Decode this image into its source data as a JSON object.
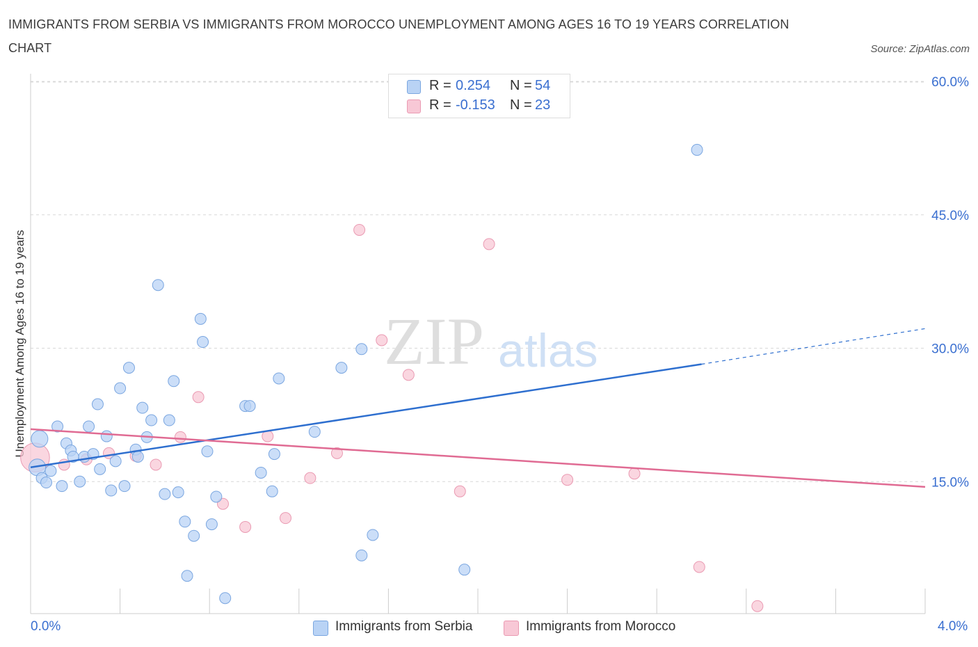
{
  "title": "IMMIGRANTS FROM SERBIA VS IMMIGRANTS FROM MOROCCO UNEMPLOYMENT AMONG AGES 16 TO 19 YEARS CORRELATION CHART",
  "source": "Source: ZipAtlas.com",
  "watermark": {
    "zip": "ZIP",
    "atlas": "atlas"
  },
  "legend": {
    "serbia": {
      "r_label": "R =",
      "r_value": "0.254",
      "n_label": "N =",
      "n_value": "54"
    },
    "morocco": {
      "r_label": "R =",
      "r_value": "-0.153",
      "n_label": "N =",
      "n_value": "23"
    }
  },
  "bottom_legend": {
    "serbia": "Immigrants from Serbia",
    "morocco": "Immigrants from Morocco"
  },
  "colors": {
    "serbia_fill": "#b9d3f5",
    "serbia_stroke": "#7aa6e0",
    "serbia_line": "#2e6fcf",
    "morocco_fill": "#f8c8d6",
    "morocco_stroke": "#ea9ab2",
    "morocco_line": "#e06b93",
    "tick_label": "#3a6fd0",
    "grid": "#d8d8d8"
  },
  "chart_data": {
    "type": "scatter",
    "title": "IMMIGRANTS FROM SERBIA VS IMMIGRANTS FROM MOROCCO UNEMPLOYMENT AMONG AGES 16 TO 19 YEARS CORRELATION CHART",
    "xlabel": "",
    "ylabel": "Unemployment Among Ages 16 to 19 years",
    "xlim": [
      0,
      4.0
    ],
    "ylim": [
      0,
      60
    ],
    "x_tick_labels": [
      "0.0%",
      "4.0%"
    ],
    "y_ticks": [
      15,
      30,
      45,
      60
    ],
    "y_tick_labels": [
      "15.0%",
      "30.0%",
      "45.0%",
      "60.0%"
    ],
    "grid": "horizontal dashed",
    "legend_position": "top-center",
    "series": [
      {
        "name": "Immigrants from Serbia",
        "r": 0.254,
        "n": 54,
        "trend": {
          "x0": 0.0,
          "y0": 16.6,
          "x1": 3.0,
          "y1": 28.2,
          "dashed_to_x": 4.0,
          "dashed_to_y": 32.2
        },
        "points": [
          [
            0.03,
            16.6,
            1.5
          ],
          [
            0.04,
            19.8,
            1.5
          ],
          [
            0.05,
            15.4,
            1
          ],
          [
            0.07,
            14.9,
            1
          ],
          [
            0.09,
            16.2,
            1
          ],
          [
            0.12,
            21.2,
            1
          ],
          [
            0.14,
            14.5,
            1
          ],
          [
            0.16,
            19.3,
            1
          ],
          [
            0.18,
            18.5,
            1
          ],
          [
            0.19,
            17.8,
            1
          ],
          [
            0.22,
            15.0,
            1
          ],
          [
            0.24,
            17.8,
            1
          ],
          [
            0.26,
            21.2,
            1
          ],
          [
            0.28,
            18.1,
            1
          ],
          [
            0.3,
            23.7,
            1
          ],
          [
            0.31,
            16.4,
            1
          ],
          [
            0.34,
            20.1,
            1
          ],
          [
            0.36,
            14.0,
            1
          ],
          [
            0.38,
            17.3,
            1
          ],
          [
            0.4,
            25.5,
            1
          ],
          [
            0.42,
            14.5,
            1
          ],
          [
            0.44,
            27.8,
            1
          ],
          [
            0.47,
            18.6,
            1
          ],
          [
            0.48,
            17.8,
            1
          ],
          [
            0.5,
            23.3,
            1
          ],
          [
            0.52,
            20.0,
            1
          ],
          [
            0.54,
            21.9,
            1
          ],
          [
            0.57,
            37.1,
            1
          ],
          [
            0.6,
            13.6,
            1
          ],
          [
            0.62,
            21.9,
            1
          ],
          [
            0.64,
            26.3,
            1
          ],
          [
            0.66,
            13.8,
            1
          ],
          [
            0.69,
            10.5,
            1
          ],
          [
            0.7,
            4.4,
            1
          ],
          [
            0.73,
            8.9,
            1
          ],
          [
            0.76,
            33.3,
            1
          ],
          [
            0.77,
            30.7,
            1
          ],
          [
            0.79,
            18.4,
            1
          ],
          [
            0.81,
            10.2,
            1
          ],
          [
            0.83,
            13.3,
            1
          ],
          [
            0.87,
            1.9,
            1
          ],
          [
            0.96,
            23.5,
            1
          ],
          [
            0.98,
            23.5,
            1
          ],
          [
            1.03,
            16.0,
            1
          ],
          [
            1.08,
            13.9,
            1
          ],
          [
            1.09,
            18.1,
            1
          ],
          [
            1.11,
            26.6,
            1
          ],
          [
            1.27,
            20.6,
            1
          ],
          [
            1.39,
            27.8,
            1
          ],
          [
            1.48,
            6.7,
            1
          ],
          [
            1.48,
            29.9,
            1
          ],
          [
            1.53,
            9.0,
            1
          ],
          [
            1.94,
            5.1,
            1
          ],
          [
            2.98,
            52.3,
            1
          ]
        ]
      },
      {
        "name": "Immigrants from Morocco",
        "r": -0.153,
        "n": 23,
        "trend": {
          "x0": 0.0,
          "y0": 20.9,
          "x1": 4.0,
          "y1": 14.4
        },
        "points": [
          [
            0.02,
            17.7,
            2.6
          ],
          [
            0.15,
            16.9,
            1
          ],
          [
            0.25,
            17.5,
            1
          ],
          [
            0.35,
            18.2,
            1
          ],
          [
            0.47,
            17.9,
            1
          ],
          [
            0.56,
            16.9,
            1
          ],
          [
            0.67,
            20.0,
            1
          ],
          [
            0.75,
            24.5,
            1
          ],
          [
            0.86,
            12.5,
            1
          ],
          [
            0.96,
            9.9,
            1
          ],
          [
            1.06,
            20.1,
            1
          ],
          [
            1.14,
            10.9,
            1
          ],
          [
            1.25,
            15.4,
            1
          ],
          [
            1.37,
            18.2,
            1
          ],
          [
            1.47,
            43.3,
            1
          ],
          [
            1.57,
            30.9,
            1
          ],
          [
            1.69,
            27.0,
            1
          ],
          [
            1.92,
            13.9,
            1
          ],
          [
            2.05,
            41.7,
            1
          ],
          [
            2.4,
            15.2,
            1
          ],
          [
            2.7,
            15.9,
            1
          ],
          [
            2.99,
            5.4,
            1
          ],
          [
            3.25,
            1.0,
            1
          ]
        ]
      }
    ]
  }
}
